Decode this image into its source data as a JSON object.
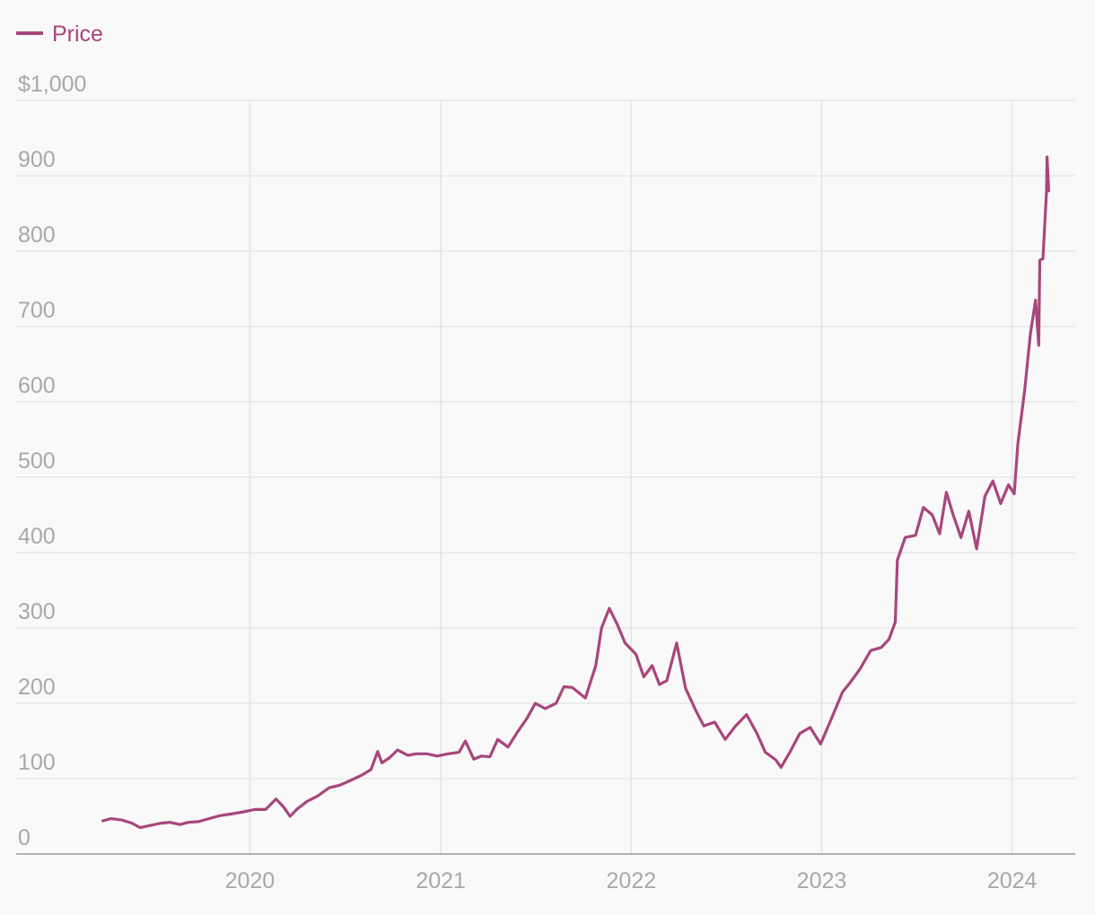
{
  "legend": {
    "label": "Price",
    "color": "#a8467c"
  },
  "chart_data": {
    "type": "line",
    "title": "",
    "xlabel": "",
    "ylabel": "",
    "ylim": [
      0,
      1000
    ],
    "xlim": [
      "2018-10-10",
      "2024-05-01"
    ],
    "y_ticks": [
      0,
      100,
      200,
      300,
      400,
      500,
      600,
      700,
      800,
      900,
      1000
    ],
    "y_tick_labels": [
      "0",
      "100",
      "200",
      "300",
      "400",
      "500",
      "600",
      "700",
      "800",
      "900",
      "$1,000"
    ],
    "x_ticks": [
      "2020-01-01",
      "2021-01-01",
      "2022-01-01",
      "2023-01-01",
      "2024-01-01"
    ],
    "x_tick_labels": [
      "2020",
      "2021",
      "2022",
      "2023",
      "2024"
    ],
    "grid": true,
    "legend_position": "top-left",
    "series": [
      {
        "name": "Price",
        "color": "#a8467c",
        "points": [
          [
            "2019-03-25",
            44
          ],
          [
            "2019-04-10",
            47
          ],
          [
            "2019-05-01",
            45
          ],
          [
            "2019-05-20",
            41
          ],
          [
            "2019-06-05",
            35
          ],
          [
            "2019-06-25",
            38
          ],
          [
            "2019-07-15",
            41
          ],
          [
            "2019-08-01",
            42
          ],
          [
            "2019-08-20",
            39
          ],
          [
            "2019-09-05",
            42
          ],
          [
            "2019-09-25",
            43
          ],
          [
            "2019-10-15",
            47
          ],
          [
            "2019-11-05",
            51
          ],
          [
            "2019-11-25",
            53
          ],
          [
            "2019-12-20",
            56
          ],
          [
            "2020-01-10",
            59
          ],
          [
            "2020-01-31",
            59
          ],
          [
            "2020-02-20",
            73
          ],
          [
            "2020-03-05",
            63
          ],
          [
            "2020-03-18",
            50
          ],
          [
            "2020-04-01",
            60
          ],
          [
            "2020-04-20",
            70
          ],
          [
            "2020-05-10",
            77
          ],
          [
            "2020-06-01",
            88
          ],
          [
            "2020-06-20",
            91
          ],
          [
            "2020-07-10",
            97
          ],
          [
            "2020-08-01",
            104
          ],
          [
            "2020-08-20",
            112
          ],
          [
            "2020-09-02",
            136
          ],
          [
            "2020-09-10",
            121
          ],
          [
            "2020-09-25",
            128
          ],
          [
            "2020-10-10",
            138
          ],
          [
            "2020-10-30",
            131
          ],
          [
            "2020-11-15",
            133
          ],
          [
            "2020-12-05",
            133
          ],
          [
            "2020-12-25",
            130
          ],
          [
            "2021-01-15",
            133
          ],
          [
            "2021-02-05",
            135
          ],
          [
            "2021-02-17",
            150
          ],
          [
            "2021-03-05",
            126
          ],
          [
            "2021-03-20",
            130
          ],
          [
            "2021-04-05",
            129
          ],
          [
            "2021-04-20",
            152
          ],
          [
            "2021-05-10",
            142
          ],
          [
            "2021-05-28",
            162
          ],
          [
            "2021-06-15",
            180
          ],
          [
            "2021-07-01",
            200
          ],
          [
            "2021-07-20",
            193
          ],
          [
            "2021-08-10",
            200
          ],
          [
            "2021-08-25",
            222
          ],
          [
            "2021-09-10",
            221
          ],
          [
            "2021-10-05",
            207
          ],
          [
            "2021-10-25",
            250
          ],
          [
            "2021-11-05",
            300
          ],
          [
            "2021-11-20",
            326
          ],
          [
            "2021-12-05",
            305
          ],
          [
            "2021-12-20",
            280
          ],
          [
            "2022-01-10",
            265
          ],
          [
            "2022-01-25",
            235
          ],
          [
            "2022-02-10",
            250
          ],
          [
            "2022-02-24",
            225
          ],
          [
            "2022-03-10",
            230
          ],
          [
            "2022-03-29",
            280
          ],
          [
            "2022-04-15",
            220
          ],
          [
            "2022-05-05",
            190
          ],
          [
            "2022-05-20",
            170
          ],
          [
            "2022-06-10",
            175
          ],
          [
            "2022-06-30",
            152
          ],
          [
            "2022-07-20",
            170
          ],
          [
            "2022-08-10",
            185
          ],
          [
            "2022-08-30",
            160
          ],
          [
            "2022-09-15",
            135
          ],
          [
            "2022-10-05",
            125
          ],
          [
            "2022-10-15",
            115
          ],
          [
            "2022-11-01",
            135
          ],
          [
            "2022-11-20",
            160
          ],
          [
            "2022-12-10",
            168
          ],
          [
            "2022-12-30",
            146
          ],
          [
            "2023-01-20",
            180
          ],
          [
            "2023-02-10",
            215
          ],
          [
            "2023-02-25",
            228
          ],
          [
            "2023-03-15",
            245
          ],
          [
            "2023-04-05",
            270
          ],
          [
            "2023-04-25",
            274
          ],
          [
            "2023-05-10",
            285
          ],
          [
            "2023-05-22",
            308
          ],
          [
            "2023-05-26",
            390
          ],
          [
            "2023-06-10",
            420
          ],
          [
            "2023-06-30",
            423
          ],
          [
            "2023-07-15",
            460
          ],
          [
            "2023-08-01",
            450
          ],
          [
            "2023-08-15",
            425
          ],
          [
            "2023-08-28",
            480
          ],
          [
            "2023-09-10",
            450
          ],
          [
            "2023-09-25",
            420
          ],
          [
            "2023-10-10",
            455
          ],
          [
            "2023-10-25",
            405
          ],
          [
            "2023-11-10",
            475
          ],
          [
            "2023-11-25",
            495
          ],
          [
            "2023-12-10",
            465
          ],
          [
            "2023-12-25",
            490
          ],
          [
            "2024-01-05",
            478
          ],
          [
            "2024-01-12",
            545
          ],
          [
            "2024-01-25",
            615
          ],
          [
            "2024-02-05",
            690
          ],
          [
            "2024-02-15",
            735
          ],
          [
            "2024-02-21",
            675
          ],
          [
            "2024-02-23",
            788
          ],
          [
            "2024-02-29",
            790
          ],
          [
            "2024-03-07",
            880
          ],
          [
            "2024-03-08",
            925
          ],
          [
            "2024-03-11",
            880
          ]
        ]
      }
    ]
  }
}
